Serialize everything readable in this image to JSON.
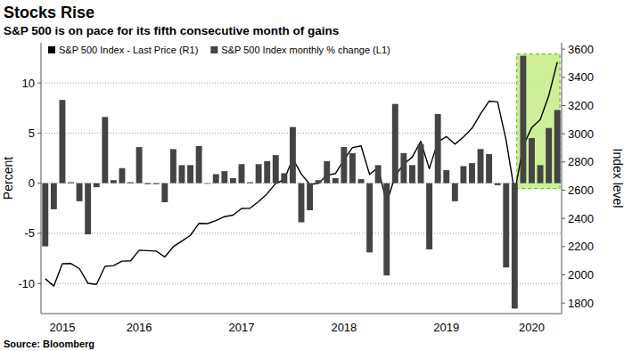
{
  "chart_data": {
    "type": "bar",
    "title": "Stocks Rise",
    "subtitle": "S&P 500 is on pace for its fifth consecutive month of gains",
    "source": "Source: Bloomberg",
    "y_label": "Percent",
    "y2_label": "Index level",
    "categories": [
      null,
      null,
      "2015",
      null,
      null,
      null,
      null,
      null,
      null,
      null,
      null,
      "2016",
      null,
      null,
      null,
      null,
      null,
      null,
      null,
      null,
      null,
      null,
      null,
      "2017",
      null,
      null,
      null,
      null,
      null,
      null,
      null,
      null,
      null,
      null,
      null,
      "2018",
      null,
      null,
      null,
      null,
      null,
      null,
      null,
      null,
      null,
      null,
      null,
      "2019",
      null,
      null,
      null,
      null,
      null,
      null,
      null,
      null,
      null,
      "2020",
      null,
      null,
      null
    ],
    "series": [
      {
        "name": "S&P 500 Index - Last Price (R1)",
        "type": "line",
        "axis": "y2",
        "color": "#000000",
        "values": [
          1972,
          1920,
          2079,
          2080,
          2044,
          1940,
          1932,
          2060,
          2065,
          2097,
          2099,
          2174,
          2171,
          2168,
          2126,
          2199,
          2239,
          2279,
          2364,
          2363,
          2384,
          2412,
          2423,
          2470,
          2472,
          2519,
          2575,
          2648,
          2674,
          2824,
          2714,
          2641,
          2648,
          2705,
          2718,
          2816,
          2902,
          2914,
          2712,
          2760,
          2507,
          2704,
          2784,
          2834,
          2946,
          2752,
          2942,
          2980,
          2926,
          2977,
          3038,
          3141,
          3231,
          3226,
          2954,
          2585,
          2912,
          3044,
          3100,
          3271,
          3508
        ]
      },
      {
        "name": "S&P 500 Index monthly % change (L1)",
        "type": "bar",
        "color": "#444444",
        "values": [
          -6.3,
          -2.6,
          8.3,
          0.1,
          -1.8,
          -5.1,
          -0.4,
          6.6,
          0.3,
          1.5,
          0.1,
          3.6,
          -0.1,
          -0.1,
          -1.9,
          3.4,
          1.8,
          1.8,
          3.7,
          0.0,
          0.9,
          1.2,
          0.5,
          1.9,
          0.1,
          1.9,
          2.2,
          2.8,
          1.0,
          5.6,
          -3.9,
          -2.7,
          0.3,
          2.2,
          0.5,
          3.6,
          3.0,
          0.4,
          -6.9,
          1.8,
          -9.2,
          7.9,
          3.0,
          1.8,
          3.9,
          -6.6,
          6.9,
          1.3,
          -1.8,
          1.7,
          2.0,
          3.4,
          2.9,
          -0.2,
          -8.4,
          -12.5,
          12.7,
          4.5,
          1.8,
          5.5,
          7.3
        ]
      }
    ],
    "ylim": [
      -13,
      14
    ],
    "yticks": [
      -10,
      -5,
      0,
      5,
      10
    ],
    "y2lim": [
      1725,
      3645
    ],
    "y2ticks": [
      1800,
      2000,
      2200,
      2400,
      2600,
      2800,
      3000,
      3200,
      3400,
      3600
    ],
    "grid": true,
    "legend": "top-left"
  }
}
